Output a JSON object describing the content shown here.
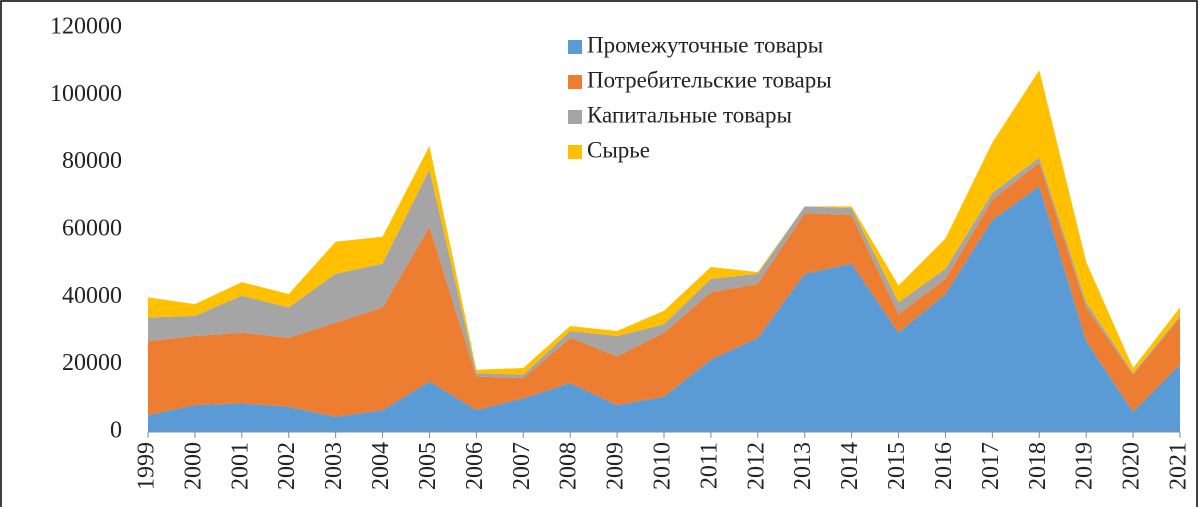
{
  "chart_data": {
    "type": "stacked_area",
    "categories": [
      "1999",
      "2000",
      "2001",
      "2002",
      "2003",
      "2004",
      "2005",
      "2006",
      "2007",
      "2008",
      "2009",
      "2010",
      "2011",
      "2012",
      "2013",
      "2014",
      "2015",
      "2016",
      "2017",
      "2018",
      "2019",
      "2020",
      "2021"
    ],
    "series": [
      {
        "name": "Промежуточные товары",
        "color": "#5b9bd5",
        "values": [
          5000,
          8000,
          8500,
          7500,
          4500,
          6500,
          15000,
          6500,
          10000,
          14500,
          8000,
          10500,
          21500,
          28000,
          47000,
          50000,
          29500,
          41000,
          63000,
          73000,
          27000,
          6000,
          20000
        ]
      },
      {
        "name": "Потребительские товары",
        "color": "#ed7d31",
        "values": [
          22000,
          20500,
          21000,
          20500,
          28000,
          30500,
          46000,
          10000,
          6000,
          13500,
          14500,
          19000,
          20000,
          16000,
          18000,
          14500,
          5500,
          4500,
          6000,
          7000,
          10000,
          11000,
          14000
        ]
      },
      {
        "name": "Капитальные товары",
        "color": "#a5a5a5",
        "values": [
          7000,
          6000,
          11000,
          9000,
          14500,
          13000,
          17000,
          1000,
          1000,
          2000,
          6000,
          2500,
          4000,
          3000,
          2000,
          2000,
          3500,
          3000,
          2000,
          1500,
          1500,
          500,
          500
        ]
      },
      {
        "name": "Сырье",
        "color": "#ffc000",
        "values": [
          6000,
          3500,
          4000,
          4000,
          9500,
          8000,
          7000,
          1000,
          2000,
          1500,
          1500,
          4000,
          3500,
          500,
          0,
          500,
          5000,
          9000,
          15000,
          26000,
          12000,
          1500,
          2500
        ]
      }
    ],
    "ylim": [
      0,
      120000
    ],
    "yticks": [
      0,
      20000,
      40000,
      60000,
      80000,
      100000,
      120000
    ],
    "grid": false
  }
}
